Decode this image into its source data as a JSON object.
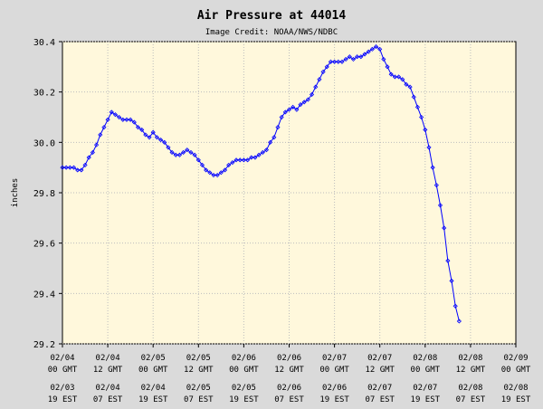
{
  "chart_data": {
    "type": "line",
    "title": "Air Pressure at 44014",
    "subtitle": "Image Credit: NOAA/NWS/NDBC",
    "ylabel": "inches",
    "xlabel": "",
    "ylim": [
      29.2,
      30.4
    ],
    "yticks": [
      "29.2",
      "29.4",
      "29.6",
      "29.8",
      "30.0",
      "30.2",
      "30.4"
    ],
    "grid": true,
    "line_color": "#0000ff",
    "plot_background": "#fff8dc",
    "xlim_hours": [
      0,
      120
    ],
    "xticks_gmt": [
      {
        "hour": 0,
        "date": "02/04",
        "time": "00 GMT"
      },
      {
        "hour": 12,
        "date": "02/04",
        "time": "12 GMT"
      },
      {
        "hour": 24,
        "date": "02/05",
        "time": "00 GMT"
      },
      {
        "hour": 36,
        "date": "02/05",
        "time": "12 GMT"
      },
      {
        "hour": 48,
        "date": "02/06",
        "time": "00 GMT"
      },
      {
        "hour": 60,
        "date": "02/06",
        "time": "12 GMT"
      },
      {
        "hour": 72,
        "date": "02/07",
        "time": "00 GMT"
      },
      {
        "hour": 84,
        "date": "02/07",
        "time": "12 GMT"
      },
      {
        "hour": 96,
        "date": "02/08",
        "time": "00 GMT"
      },
      {
        "hour": 108,
        "date": "02/08",
        "time": "12 GMT"
      },
      {
        "hour": 120,
        "date": "02/09",
        "time": "00 GMT"
      }
    ],
    "xticks_local": [
      {
        "hour": 0,
        "date": "02/03",
        "time": "19 EST"
      },
      {
        "hour": 12,
        "date": "02/04",
        "time": "07 EST"
      },
      {
        "hour": 24,
        "date": "02/04",
        "time": "19 EST"
      },
      {
        "hour": 36,
        "date": "02/05",
        "time": "07 EST"
      },
      {
        "hour": 48,
        "date": "02/05",
        "time": "19 EST"
      },
      {
        "hour": 60,
        "date": "02/06",
        "time": "07 EST"
      },
      {
        "hour": 72,
        "date": "02/06",
        "time": "19 EST"
      },
      {
        "hour": 84,
        "date": "02/07",
        "time": "07 EST"
      },
      {
        "hour": 96,
        "date": "02/07",
        "time": "19 EST"
      },
      {
        "hour": 108,
        "date": "02/08",
        "time": "07 EST"
      },
      {
        "hour": 120,
        "date": "02/08",
        "time": "19 EST"
      }
    ],
    "series": [
      {
        "points": [
          [
            0,
            29.9
          ],
          [
            1,
            29.9
          ],
          [
            2,
            29.9
          ],
          [
            3,
            29.9
          ],
          [
            4,
            29.89
          ],
          [
            5,
            29.89
          ],
          [
            6,
            29.91
          ],
          [
            7,
            29.94
          ],
          [
            8,
            29.96
          ],
          [
            9,
            29.99
          ],
          [
            10,
            30.03
          ],
          [
            11,
            30.06
          ],
          [
            12,
            30.09
          ],
          [
            13,
            30.12
          ],
          [
            14,
            30.11
          ],
          [
            15,
            30.1
          ],
          [
            16,
            30.09
          ],
          [
            17,
            30.09
          ],
          [
            18,
            30.09
          ],
          [
            19,
            30.08
          ],
          [
            20,
            30.06
          ],
          [
            21,
            30.05
          ],
          [
            22,
            30.03
          ],
          [
            23,
            30.02
          ],
          [
            24,
            30.04
          ],
          [
            25,
            30.02
          ],
          [
            26,
            30.01
          ],
          [
            27,
            30.0
          ],
          [
            28,
            29.98
          ],
          [
            29,
            29.96
          ],
          [
            30,
            29.95
          ],
          [
            31,
            29.95
          ],
          [
            32,
            29.96
          ],
          [
            33,
            29.97
          ],
          [
            34,
            29.96
          ],
          [
            35,
            29.95
          ],
          [
            36,
            29.93
          ],
          [
            37,
            29.91
          ],
          [
            38,
            29.89
          ],
          [
            39,
            29.88
          ],
          [
            40,
            29.87
          ],
          [
            41,
            29.87
          ],
          [
            42,
            29.88
          ],
          [
            43,
            29.89
          ],
          [
            44,
            29.91
          ],
          [
            45,
            29.92
          ],
          [
            46,
            29.93
          ],
          [
            47,
            29.93
          ],
          [
            48,
            29.93
          ],
          [
            49,
            29.93
          ],
          [
            50,
            29.94
          ],
          [
            51,
            29.94
          ],
          [
            52,
            29.95
          ],
          [
            53,
            29.96
          ],
          [
            54,
            29.97
          ],
          [
            55,
            30.0
          ],
          [
            56,
            30.02
          ],
          [
            57,
            30.06
          ],
          [
            58,
            30.1
          ],
          [
            59,
            30.12
          ],
          [
            60,
            30.13
          ],
          [
            61,
            30.14
          ],
          [
            62,
            30.13
          ],
          [
            63,
            30.15
          ],
          [
            64,
            30.16
          ],
          [
            65,
            30.17
          ],
          [
            66,
            30.19
          ],
          [
            67,
            30.22
          ],
          [
            68,
            30.25
          ],
          [
            69,
            30.28
          ],
          [
            70,
            30.3
          ],
          [
            71,
            30.32
          ],
          [
            72,
            30.32
          ],
          [
            73,
            30.32
          ],
          [
            74,
            30.32
          ],
          [
            75,
            30.33
          ],
          [
            76,
            30.34
          ],
          [
            77,
            30.33
          ],
          [
            78,
            30.34
          ],
          [
            79,
            30.34
          ],
          [
            80,
            30.35
          ],
          [
            81,
            30.36
          ],
          [
            82,
            30.37
          ],
          [
            83,
            30.38
          ],
          [
            84,
            30.37
          ],
          [
            85,
            30.33
          ],
          [
            86,
            30.3
          ],
          [
            87,
            30.27
          ],
          [
            88,
            30.26
          ],
          [
            89,
            30.26
          ],
          [
            90,
            30.25
          ],
          [
            91,
            30.23
          ],
          [
            92,
            30.22
          ],
          [
            93,
            30.18
          ],
          [
            94,
            30.14
          ],
          [
            95,
            30.1
          ],
          [
            96,
            30.05
          ],
          [
            97,
            29.98
          ],
          [
            98,
            29.9
          ],
          [
            99,
            29.83
          ],
          [
            100,
            29.75
          ],
          [
            101,
            29.66
          ],
          [
            102,
            29.53
          ],
          [
            103,
            29.45
          ],
          [
            104,
            29.35
          ],
          [
            105,
            29.29
          ]
        ]
      }
    ]
  }
}
